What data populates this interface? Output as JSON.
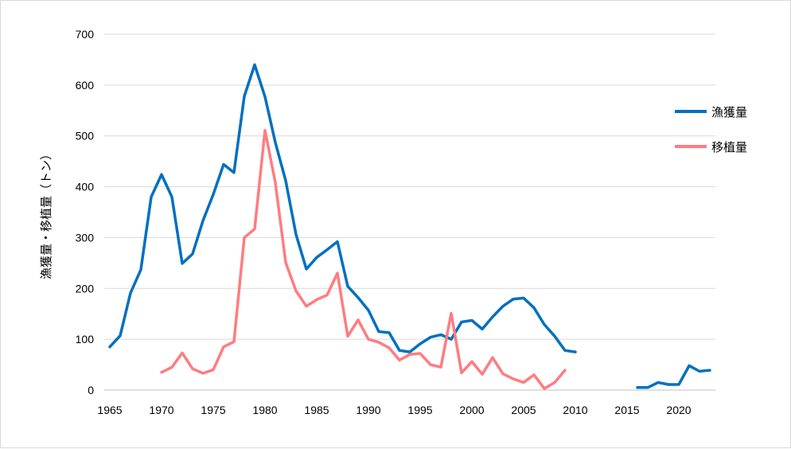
{
  "chart_data": {
    "type": "line",
    "title": "",
    "xlabel": "",
    "ylabel": "漁獲量・移植量（トン）",
    "xlim": [
      1965,
      2023
    ],
    "ylim": [
      0,
      700
    ],
    "xticks": [
      1965,
      1970,
      1975,
      1980,
      1985,
      1990,
      1995,
      2000,
      2005,
      2010,
      2015,
      2020
    ],
    "yticks": [
      0,
      100,
      200,
      300,
      400,
      500,
      600,
      700
    ],
    "grid": "horizontal",
    "legend_position": "right",
    "series": [
      {
        "name": "漁獲量",
        "color": "#0070c0",
        "points": [
          [
            1965,
            85
          ],
          [
            1966,
            107
          ],
          [
            1967,
            191
          ],
          [
            1968,
            237
          ],
          [
            1969,
            380
          ],
          [
            1970,
            424
          ],
          [
            1971,
            380
          ],
          [
            1972,
            249
          ],
          [
            1973,
            268
          ],
          [
            1974,
            333
          ],
          [
            1975,
            385
          ],
          [
            1976,
            444
          ],
          [
            1977,
            428
          ],
          [
            1978,
            578
          ],
          [
            1979,
            640
          ],
          [
            1980,
            577
          ],
          [
            1981,
            487
          ],
          [
            1982,
            412
          ],
          [
            1983,
            306
          ],
          [
            1984,
            238
          ],
          [
            1985,
            261
          ],
          [
            1986,
            276
          ],
          [
            1987,
            292
          ],
          [
            1988,
            204
          ],
          [
            1989,
            182
          ],
          [
            1990,
            157
          ],
          [
            1991,
            115
          ],
          [
            1992,
            113
          ],
          [
            1993,
            78
          ],
          [
            1994,
            75
          ],
          [
            1995,
            91
          ],
          [
            1996,
            104
          ],
          [
            1997,
            109
          ],
          [
            1998,
            100
          ],
          [
            1999,
            134
          ],
          [
            2000,
            137
          ],
          [
            2001,
            120
          ],
          [
            2002,
            144
          ],
          [
            2003,
            165
          ],
          [
            2004,
            179
          ],
          [
            2005,
            181
          ],
          [
            2006,
            162
          ],
          [
            2007,
            129
          ],
          [
            2008,
            106
          ],
          [
            2009,
            78
          ],
          [
            2010,
            75
          ],
          null,
          [
            2016,
            5
          ],
          [
            2017,
            5
          ],
          [
            2018,
            15
          ],
          [
            2019,
            11
          ],
          [
            2020,
            11
          ],
          [
            2021,
            48
          ],
          [
            2022,
            37
          ],
          [
            2023,
            39
          ]
        ]
      },
      {
        "name": "移植量",
        "color": "#ff7c80",
        "points": [
          [
            1970,
            35
          ],
          [
            1971,
            45
          ],
          [
            1972,
            73
          ],
          [
            1973,
            42
          ],
          [
            1974,
            33
          ],
          [
            1975,
            40
          ],
          [
            1976,
            85
          ],
          [
            1977,
            95
          ],
          [
            1978,
            300
          ],
          [
            1979,
            317
          ],
          [
            1980,
            511
          ],
          [
            1981,
            408
          ],
          [
            1982,
            251
          ],
          [
            1983,
            195
          ],
          [
            1984,
            165
          ],
          [
            1985,
            178
          ],
          [
            1986,
            187
          ],
          [
            1987,
            230
          ],
          [
            1988,
            106
          ],
          [
            1989,
            138
          ],
          [
            1990,
            100
          ],
          [
            1991,
            94
          ],
          [
            1992,
            83
          ],
          [
            1993,
            59
          ],
          [
            1994,
            70
          ],
          [
            1995,
            72
          ],
          [
            1996,
            50
          ],
          [
            1997,
            45
          ],
          [
            1998,
            151
          ],
          [
            1999,
            34
          ],
          [
            2000,
            56
          ],
          [
            2001,
            31
          ],
          [
            2002,
            64
          ],
          [
            2003,
            32
          ],
          [
            2004,
            22
          ],
          [
            2005,
            15
          ],
          [
            2006,
            30
          ],
          [
            2007,
            3
          ],
          [
            2008,
            15
          ],
          [
            2009,
            39
          ]
        ]
      }
    ]
  }
}
